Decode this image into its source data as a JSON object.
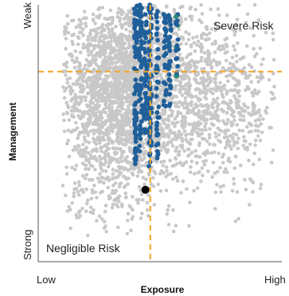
{
  "chart_data": {
    "type": "scatter",
    "title": "",
    "xlabel": "Exposure",
    "ylabel": "Management",
    "xlim": [
      0,
      1
    ],
    "ylim": [
      0,
      1
    ],
    "x_tick_labels": {
      "low": "Low",
      "high": "High"
    },
    "y_tick_labels": {
      "low": "Strong",
      "high": "Weak"
    },
    "grid": false,
    "legend": "none",
    "annotations": [
      {
        "text": "Severe Risk",
        "x": 0.8,
        "y": 0.95
      },
      {
        "text": "Negligible Risk",
        "x": 0.21,
        "y": 0.05
      }
    ],
    "thresholds": {
      "x": 0.46,
      "y": 0.74,
      "color": "#f5a623"
    },
    "series": [
      {
        "role": "background",
        "color": "#c8c8c8",
        "clusters": [
          {
            "x_center": 0.36,
            "x_spread": 0.14,
            "y_center": 0.72,
            "y_spread": 0.15,
            "n": 1400
          },
          {
            "x_center": 0.5,
            "x_spread": 0.22,
            "y_center": 0.65,
            "y_spread": 0.2,
            "n": 1300
          },
          {
            "x_center": 0.3,
            "x_spread": 0.1,
            "y_center": 0.45,
            "y_spread": 0.18,
            "n": 500
          },
          {
            "x_center": 0.78,
            "x_spread": 0.1,
            "y_center": 0.6,
            "y_spread": 0.18,
            "n": 250
          }
        ],
        "x_range": [
          0.1,
          0.97
        ],
        "y_range": [
          0.1,
          1.0
        ]
      },
      {
        "role": "highlight",
        "color": "#1f5f9a",
        "columns": [
          {
            "x": 0.4,
            "y_from": 0.38,
            "y_to": 1.0,
            "n": 70
          },
          {
            "x": 0.42,
            "y_from": 0.42,
            "y_to": 1.0,
            "n": 60
          },
          {
            "x": 0.44,
            "y_from": 0.5,
            "y_to": 0.97,
            "n": 45
          },
          {
            "x": 0.46,
            "y_from": 0.36,
            "y_to": 1.0,
            "n": 60
          },
          {
            "x": 0.49,
            "y_from": 0.4,
            "y_to": 0.98,
            "n": 40
          },
          {
            "x": 0.52,
            "y_from": 0.6,
            "y_to": 0.97,
            "n": 30
          },
          {
            "x": 0.54,
            "y_from": 0.6,
            "y_to": 0.97,
            "n": 30
          },
          {
            "x": 0.57,
            "y_from": 0.7,
            "y_to": 0.97,
            "n": 20
          }
        ],
        "accent_color": "#2a8a78"
      }
    ],
    "marker": {
      "x": 0.44,
      "y": 0.28,
      "color": "#000000"
    }
  }
}
